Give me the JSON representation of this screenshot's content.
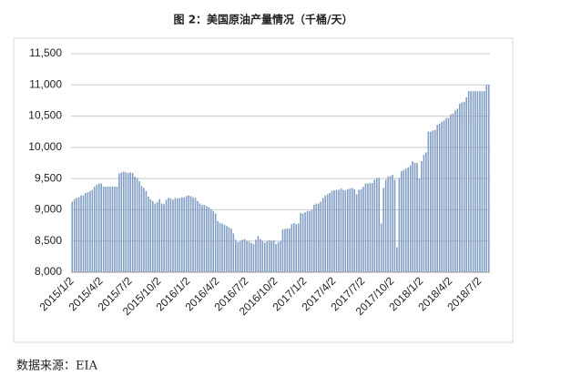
{
  "chart_data": {
    "type": "bar",
    "title": "图 2：美国原油产量情况（千桶/天）",
    "source": "数据来源：EIA",
    "color": "#7f9cc4",
    "grid": true,
    "ylim": [
      8000,
      11500
    ],
    "yticks": [
      {
        "value": 8000,
        "label": "8,000"
      },
      {
        "value": 8500,
        "label": "8,500"
      },
      {
        "value": 9000,
        "label": "9,000"
      },
      {
        "value": 9500,
        "label": "9,500"
      },
      {
        "value": 10000,
        "label": "10,000"
      },
      {
        "value": 10500,
        "label": "10,500"
      },
      {
        "value": 11000,
        "label": "11,000"
      },
      {
        "value": 11500,
        "label": "11,500"
      }
    ],
    "categories": [
      "2015/1/2",
      null,
      null,
      null,
      null,
      null,
      null,
      null,
      null,
      null,
      null,
      null,
      null,
      "2015/4/2",
      null,
      null,
      null,
      null,
      null,
      null,
      null,
      null,
      null,
      null,
      null,
      null,
      "2015/7/2",
      null,
      null,
      null,
      null,
      null,
      null,
      null,
      null,
      null,
      null,
      null,
      null,
      "2015/10/2",
      null,
      null,
      null,
      null,
      null,
      null,
      null,
      null,
      null,
      null,
      null,
      null,
      "2016/1/2",
      null,
      null,
      null,
      null,
      null,
      null,
      null,
      null,
      null,
      null,
      null,
      null,
      "2016/4/2",
      null,
      null,
      null,
      null,
      null,
      null,
      null,
      null,
      null,
      null,
      null,
      null,
      "2016/7/2",
      null,
      null,
      null,
      null,
      null,
      null,
      null,
      null,
      null,
      null,
      null,
      null,
      "2016/10/2",
      null,
      null,
      null,
      null,
      null,
      null,
      null,
      null,
      null,
      null,
      null,
      null,
      "2017/1/2",
      null,
      null,
      null,
      null,
      null,
      null,
      null,
      null,
      null,
      null,
      null,
      null,
      "2017/4/2",
      null,
      null,
      null,
      null,
      null,
      null,
      null,
      null,
      null,
      null,
      null,
      null,
      "2017/7/2",
      null,
      null,
      null,
      null,
      null,
      null,
      null,
      null,
      null,
      null,
      null,
      null,
      "2017/10/2",
      null,
      null,
      null,
      null,
      null,
      null,
      null,
      null,
      null,
      null,
      null,
      null,
      "2018/1/2",
      null,
      null,
      null,
      null,
      null,
      null,
      null,
      null,
      null,
      null,
      null,
      null,
      "2018/4/2",
      null,
      null,
      null,
      null,
      null,
      null,
      null,
      null,
      null,
      null,
      null,
      null,
      "2018/7/2",
      null,
      null,
      null,
      null
    ],
    "values": [
      9130,
      9170,
      9190,
      9200,
      9230,
      9230,
      9270,
      9280,
      9300,
      9320,
      9370,
      9400,
      9420,
      9420,
      9370,
      9370,
      9370,
      9370,
      9370,
      9370,
      9370,
      9580,
      9600,
      9610,
      9600,
      9590,
      9600,
      9590,
      9530,
      9510,
      9460,
      9380,
      9350,
      9300,
      9210,
      9170,
      9140,
      9100,
      9120,
      9170,
      9100,
      9090,
      9160,
      9190,
      9180,
      9160,
      9190,
      9180,
      9190,
      9200,
      9200,
      9220,
      9230,
      9220,
      9200,
      9190,
      9140,
      9100,
      9080,
      9080,
      9060,
      9040,
      9010,
      8980,
      8940,
      8820,
      8790,
      8780,
      8760,
      8740,
      8720,
      8700,
      8620,
      8520,
      8480,
      8500,
      8520,
      8530,
      8500,
      8490,
      8470,
      8450,
      8520,
      8580,
      8530,
      8500,
      8470,
      8500,
      8510,
      8500,
      8510,
      8450,
      8480,
      8500,
      8690,
      8690,
      8700,
      8700,
      8770,
      8790,
      8770,
      8780,
      8950,
      8940,
      8960,
      8980,
      8980,
      9000,
      9080,
      9100,
      9100,
      9130,
      9190,
      9230,
      9250,
      9270,
      9300,
      9310,
      9320,
      9320,
      9340,
      9320,
      9310,
      9330,
      9340,
      9350,
      9330,
      9250,
      9320,
      9330,
      9370,
      9420,
      9420,
      9430,
      9430,
      9480,
      9510,
      9510,
      8780,
      9350,
      9480,
      9530,
      9540,
      9560,
      9480,
      8400,
      9510,
      9620,
      9640,
      9660,
      9680,
      9710,
      9780,
      9750,
      9750,
      9500,
      9780,
      9880,
      9920,
      10250,
      10250,
      10270,
      10280,
      10360,
      10380,
      10410,
      10430,
      10470,
      10470,
      10530,
      10540,
      10590,
      10620,
      10700,
      10720,
      10730,
      10800,
      10900,
      10900,
      10900,
      10900,
      10900,
      10900,
      10900,
      10900,
      11000,
      11000
    ]
  }
}
